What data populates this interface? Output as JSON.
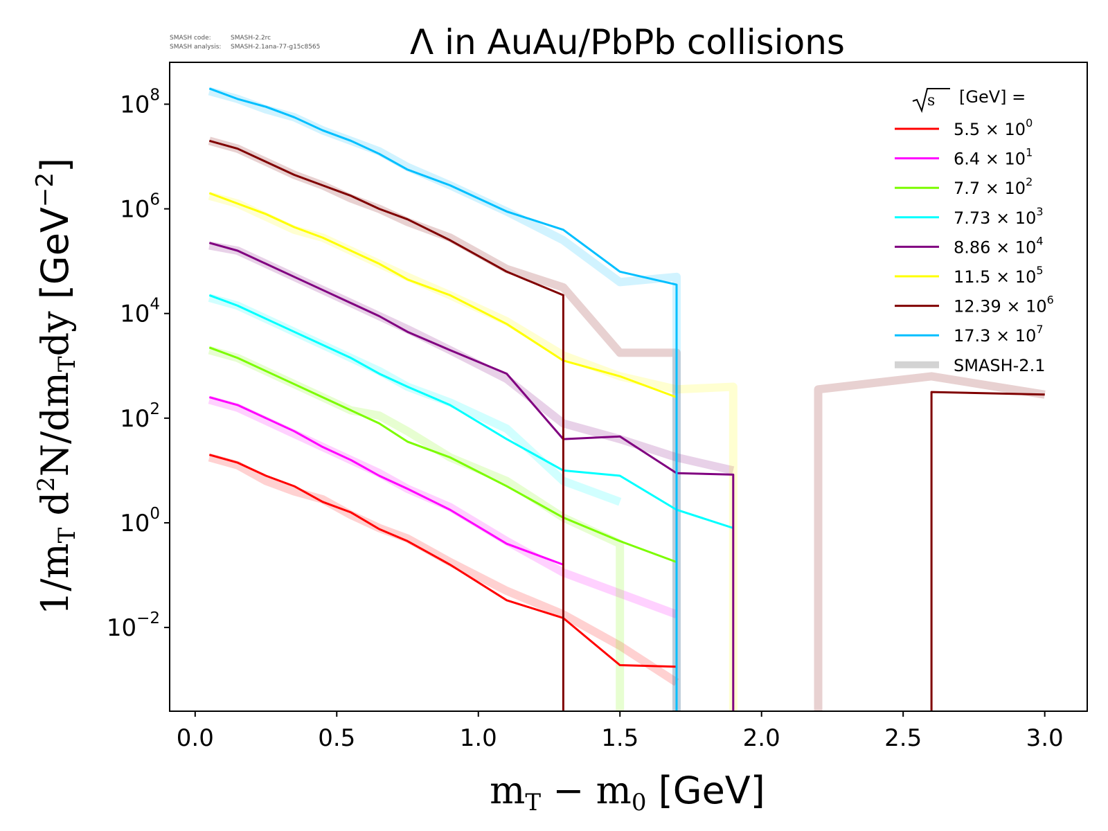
{
  "meta": {
    "code_label": "SMASH code:",
    "code_value": "SMASH-2.2rc",
    "analysis_label": "SMASH analysis:",
    "analysis_value": "SMASH-2.1ana-77-g15c8565"
  },
  "chart_data": {
    "type": "line",
    "title": "Λ in AuAu/PbPb collisions",
    "xlabel": "m_T − m_0 [GeV]",
    "ylabel": "1/m_T d²N/dm_T dy [GeV⁻²]",
    "xlim": [
      -0.09,
      3.15
    ],
    "ylim_log10": [
      -3.6,
      8.8
    ],
    "yscale": "log",
    "grid": false,
    "legend_position": "top-right",
    "legend_title": "√s [GeV] =",
    "x_ticks": [
      {
        "value": 0.0,
        "label": "0.0"
      },
      {
        "value": 0.5,
        "label": "0.5"
      },
      {
        "value": 1.0,
        "label": "1.0"
      },
      {
        "value": 1.5,
        "label": "1.5"
      },
      {
        "value": 2.0,
        "label": "2.0"
      },
      {
        "value": 2.5,
        "label": "2.5"
      },
      {
        "value": 3.0,
        "label": "3.0"
      }
    ],
    "y_ticks": [
      {
        "exp": -2,
        "base": "10",
        "sup": "−2"
      },
      {
        "exp": 0,
        "base": "10",
        "sup": "0"
      },
      {
        "exp": 2,
        "base": "10",
        "sup": "2"
      },
      {
        "exp": 4,
        "base": "10",
        "sup": "4"
      },
      {
        "exp": 6,
        "base": "10",
        "sup": "6"
      },
      {
        "exp": 8,
        "base": "10",
        "sup": "8"
      }
    ],
    "series": [
      {
        "name": "5.5 × 10⁰",
        "legend_mantissa": "5.5",
        "legend_exp": "0",
        "color": "#ff0000",
        "x": [
          0.05,
          0.15,
          0.25,
          0.35,
          0.45,
          0.55,
          0.65,
          0.75,
          0.9,
          1.1,
          1.3,
          1.5,
          1.7
        ],
        "log10_y": [
          1.3,
          1.15,
          0.9,
          0.7,
          0.4,
          0.2,
          -0.12,
          -0.35,
          -0.8,
          -1.48,
          -1.82,
          -2.72,
          -2.75
        ],
        "ref_x": [
          0.05,
          0.15,
          0.25,
          0.35,
          0.45,
          0.55,
          0.65,
          0.75,
          0.9,
          1.1,
          1.3,
          1.5,
          1.7
        ],
        "ref_log10_y": [
          1.25,
          1.1,
          0.8,
          0.6,
          0.45,
          0.15,
          -0.1,
          -0.3,
          -0.75,
          -1.3,
          -1.75,
          -2.35,
          -3.05
        ]
      },
      {
        "name": "6.4 × 10¹",
        "legend_mantissa": "6.4",
        "legend_exp": "1",
        "color": "#ff00ff",
        "x": [
          0.05,
          0.15,
          0.25,
          0.35,
          0.45,
          0.55,
          0.65,
          0.75,
          0.9,
          1.1,
          1.3
        ],
        "log10_y": [
          2.4,
          2.25,
          2.0,
          1.75,
          1.45,
          1.2,
          0.9,
          0.65,
          0.25,
          -0.4,
          -0.8
        ],
        "ref_x": [
          0.05,
          0.15,
          0.25,
          0.35,
          0.45,
          0.55,
          0.65,
          0.75,
          0.9,
          1.1,
          1.3,
          1.5,
          1.7
        ],
        "ref_log10_y": [
          2.35,
          2.2,
          1.95,
          1.7,
          1.45,
          1.2,
          0.95,
          0.65,
          0.3,
          -0.35,
          -0.95,
          -1.35,
          -1.75
        ]
      },
      {
        "name": "7.7 × 10²",
        "legend_mantissa": "7.7",
        "legend_exp": "2",
        "color": "#7cfc00",
        "x": [
          0.05,
          0.15,
          0.25,
          0.35,
          0.45,
          0.55,
          0.65,
          0.75,
          0.9,
          1.1,
          1.3,
          1.5,
          1.7
        ],
        "log10_y": [
          3.35,
          3.15,
          2.9,
          2.65,
          2.4,
          2.15,
          1.9,
          1.55,
          1.25,
          0.7,
          0.1,
          -0.35,
          -0.75
        ],
        "ref_x": [
          0.05,
          0.15,
          0.25,
          0.35,
          0.45,
          0.55,
          0.65,
          0.75,
          0.9,
          1.1,
          1.3,
          1.5,
          1.5
        ],
        "ref_log10_y": [
          3.3,
          3.15,
          2.9,
          2.65,
          2.4,
          2.15,
          2.05,
          1.75,
          1.25,
          0.8,
          0.1,
          -0.4,
          -3.6
        ]
      },
      {
        "name": "7.73 × 10³",
        "legend_mantissa": "7.73",
        "legend_exp": "3",
        "color": "#00ffff",
        "x": [
          0.05,
          0.15,
          0.25,
          0.35,
          0.45,
          0.55,
          0.65,
          0.75,
          0.9,
          1.1,
          1.3,
          1.5,
          1.7,
          1.9
        ],
        "log10_y": [
          4.35,
          4.15,
          3.9,
          3.65,
          3.4,
          3.15,
          2.85,
          2.6,
          2.25,
          1.6,
          1.0,
          0.9,
          0.25,
          -0.1
        ],
        "ref_x": [
          0.05,
          0.15,
          0.25,
          0.35,
          0.45,
          0.55,
          0.65,
          0.75,
          0.9,
          1.1,
          1.3,
          1.5
        ],
        "ref_log10_y": [
          4.3,
          4.15,
          3.9,
          3.65,
          3.4,
          3.15,
          2.9,
          2.6,
          2.3,
          1.8,
          0.8,
          0.4
        ]
      },
      {
        "name": "8.86 × 10⁴",
        "legend_mantissa": "8.86",
        "legend_exp": "4",
        "color": "#800080",
        "x": [
          0.05,
          0.15,
          0.25,
          0.35,
          0.45,
          0.55,
          0.65,
          0.75,
          0.9,
          1.1,
          1.3,
          1.5,
          1.7,
          1.9,
          1.9
        ],
        "log10_y": [
          5.35,
          5.2,
          4.95,
          4.7,
          4.45,
          4.2,
          3.95,
          3.65,
          3.3,
          2.85,
          1.6,
          1.65,
          0.95,
          0.92,
          -3.6
        ],
        "ref_x": [
          0.05,
          0.15,
          0.25,
          0.35,
          0.45,
          0.55,
          0.65,
          0.75,
          0.9,
          1.1,
          1.3,
          1.5,
          1.7,
          1.9
        ],
        "ref_log10_y": [
          5.3,
          5.2,
          4.95,
          4.7,
          4.45,
          4.2,
          3.95,
          3.7,
          3.3,
          2.75,
          1.9,
          1.6,
          1.25,
          1.0
        ]
      },
      {
        "name": "11.5 × 10⁵",
        "legend_mantissa": "11.5",
        "legend_exp": "5",
        "color": "#ffff00",
        "x": [
          0.05,
          0.15,
          0.25,
          0.35,
          0.45,
          0.55,
          0.65,
          0.75,
          0.9,
          1.1,
          1.3,
          1.5,
          1.7
        ],
        "log10_y": [
          6.3,
          6.1,
          5.9,
          5.65,
          5.45,
          5.2,
          4.95,
          4.65,
          4.35,
          3.8,
          3.1,
          2.8,
          2.4
        ],
        "ref_x": [
          0.05,
          0.15,
          0.25,
          0.35,
          0.45,
          0.55,
          0.65,
          0.75,
          0.9,
          1.1,
          1.3,
          1.5,
          1.7,
          1.9,
          1.9
        ],
        "ref_log10_y": [
          6.25,
          6.1,
          5.85,
          5.6,
          5.45,
          5.2,
          4.95,
          4.7,
          4.35,
          3.85,
          3.2,
          2.8,
          2.55,
          2.6,
          -3.6
        ]
      },
      {
        "name": "12.39 × 10⁶",
        "legend_mantissa": "12.39",
        "legend_exp": "6",
        "color": "#800000",
        "x": [
          0.05,
          0.15,
          0.25,
          0.35,
          0.45,
          0.55,
          0.65,
          0.75,
          0.9,
          1.1,
          1.3,
          1.3,
          null,
          2.6,
          2.6,
          3.0
        ],
        "log10_y": [
          7.3,
          7.15,
          6.9,
          6.65,
          6.45,
          6.25,
          6.0,
          5.8,
          5.4,
          4.8,
          4.35,
          -3.6,
          null,
          -3.6,
          2.5,
          2.45
        ],
        "ref_x": [
          0.05,
          0.15,
          0.25,
          0.35,
          0.45,
          0.55,
          0.65,
          0.75,
          0.9,
          1.1,
          1.3,
          1.5,
          1.7,
          1.7,
          null,
          2.2,
          2.2,
          2.6,
          3.0
        ],
        "ref_log10_y": [
          7.3,
          7.15,
          6.9,
          6.65,
          6.45,
          6.2,
          6.0,
          5.75,
          5.45,
          4.85,
          4.5,
          3.25,
          3.25,
          -3.6,
          null,
          -3.6,
          2.55,
          2.8,
          2.45
        ]
      },
      {
        "name": "17.3 × 10⁷",
        "legend_mantissa": "17.3",
        "legend_exp": "7",
        "color": "#00bfff",
        "x": [
          0.05,
          0.15,
          0.25,
          0.35,
          0.45,
          0.55,
          0.65,
          0.75,
          0.9,
          1.1,
          1.3,
          1.5,
          1.7,
          1.7
        ],
        "log10_y": [
          8.3,
          8.1,
          7.95,
          7.75,
          7.5,
          7.3,
          7.05,
          6.75,
          6.45,
          5.95,
          5.6,
          4.8,
          4.55,
          -3.6
        ],
        "ref_x": [
          0.05,
          0.15,
          0.25,
          0.35,
          0.45,
          0.55,
          0.65,
          0.75,
          0.9,
          1.1,
          1.3,
          1.5,
          1.7,
          1.7
        ],
        "ref_log10_y": [
          8.25,
          8.1,
          7.9,
          7.75,
          7.5,
          7.3,
          7.1,
          6.8,
          6.45,
          5.95,
          5.4,
          4.6,
          4.7,
          -3.6
        ]
      }
    ],
    "reference_label": "SMASH-2.1",
    "reference_color": "#c8c8c8"
  }
}
